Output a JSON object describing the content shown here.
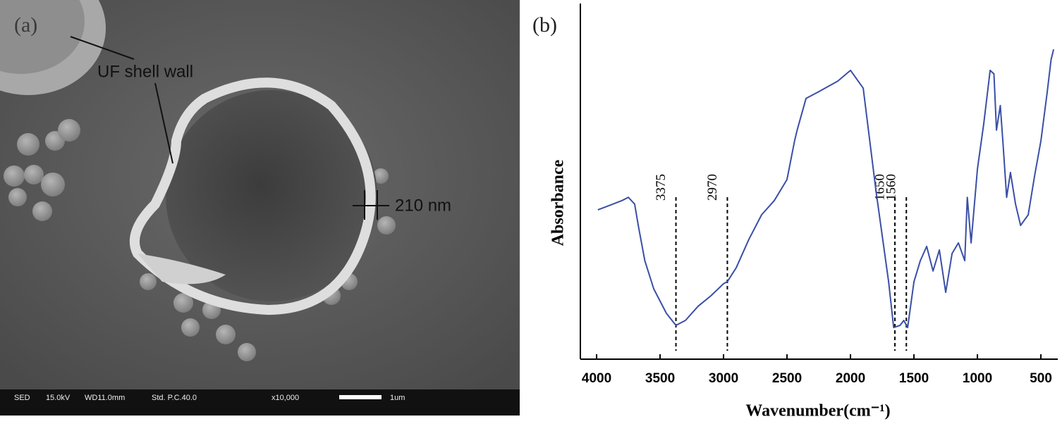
{
  "panel_a": {
    "label": "(a)",
    "annotations": [
      "UF shell wall",
      "210 nm"
    ],
    "info_bar": [
      "SED",
      "15.0kV",
      "WD11.0mm",
      "Std. P.C.40.0",
      "x10,000",
      "1um"
    ]
  },
  "chart_data": {
    "type": "line",
    "label": "(b)",
    "x_label": "Wavenumber(cm⁻¹)",
    "y_label": "Absorbance",
    "x": [
      3990,
      3900,
      3800,
      3750,
      3700,
      3672,
      3620,
      3550,
      3450,
      3375,
      3300,
      3200,
      3100,
      3000,
      2970,
      2900,
      2800,
      2700,
      2600,
      2500,
      2440,
      2420,
      2350,
      2250,
      2100,
      2000,
      1900,
      1800,
      1700,
      1660,
      1610,
      1580,
      1550,
      1500,
      1450,
      1400,
      1350,
      1300,
      1250,
      1200,
      1150,
      1100,
      1080,
      1050,
      1000,
      950,
      900,
      870,
      850,
      820,
      800,
      770,
      740,
      700,
      660,
      600,
      550,
      500,
      450,
      420,
      400
    ],
    "values": [
      42.0,
      43.2,
      44.6,
      45.5,
      43.6,
      37.6,
      27.7,
      19.8,
      12.9,
      9.5,
      10.9,
      14.9,
      17.8,
      21.2,
      21.8,
      25.7,
      33.7,
      40.6,
      44.6,
      50.5,
      61.4,
      64.4,
      73.3,
      75.2,
      78.2,
      81.2,
      76.2,
      47.5,
      21.8,
      8.9,
      9.5,
      10.9,
      8.9,
      21.8,
      27.7,
      31.7,
      24.8,
      30.7,
      18.8,
      29.7,
      32.7,
      27.7,
      45.5,
      32.7,
      53.5,
      66.3,
      81.2,
      80.2,
      64.4,
      71.3,
      61.4,
      45.5,
      52.5,
      43.6,
      37.6,
      40.6,
      51.5,
      61.4,
      75.2,
      84.2,
      87.1
    ],
    "color": "#3a4fa6",
    "xlim": [
      4128,
      367
    ],
    "ylim": [
      0,
      100
    ],
    "xticks": [
      4000,
      3500,
      3000,
      2500,
      2000,
      1500,
      1000,
      500
    ],
    "peak_lines": [
      3375,
      2970,
      1650,
      1560
    ]
  }
}
